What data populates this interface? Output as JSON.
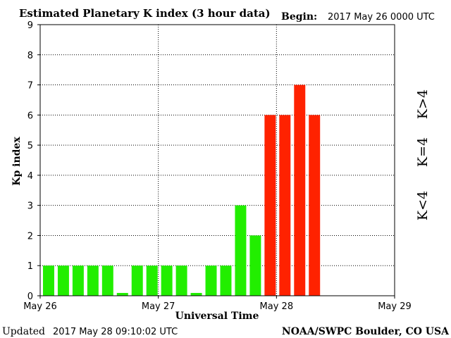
{
  "header": {
    "title": "Estimated Planetary K index (3 hour data)",
    "begin_label": "Begin:",
    "begin_value": "2017 May 26 0000 UTC"
  },
  "footer": {
    "updated_label": "Updated",
    "updated_value": "2017 May 28 09:10:02 UTC",
    "source": "NOAA/SWPC Boulder, CO USA"
  },
  "legend": {
    "high": "K>4",
    "equal": "K=4",
    "low": "K<4"
  },
  "colors": {
    "low": "#22ee00",
    "equal": "#ffcc00",
    "high": "#ff2200",
    "grid": "#000000",
    "frame": "#000000"
  },
  "chart_data": {
    "type": "bar",
    "title": "Estimated Planetary K index (3 hour data)",
    "xlabel": "Universal Time",
    "ylabel": "Kp index",
    "ylim": [
      0,
      9
    ],
    "yticks": [
      "0",
      "1",
      "2",
      "3",
      "4",
      "5",
      "6",
      "7",
      "8",
      "9"
    ],
    "xticks": [
      "May 26",
      "May 27",
      "May 28",
      "May 29"
    ],
    "grid": true,
    "interval_hours": 3,
    "values": [
      1,
      1,
      1,
      1,
      1,
      0,
      1,
      1,
      1,
      1,
      0,
      1,
      1,
      3,
      2,
      6,
      6,
      7,
      6
    ]
  }
}
